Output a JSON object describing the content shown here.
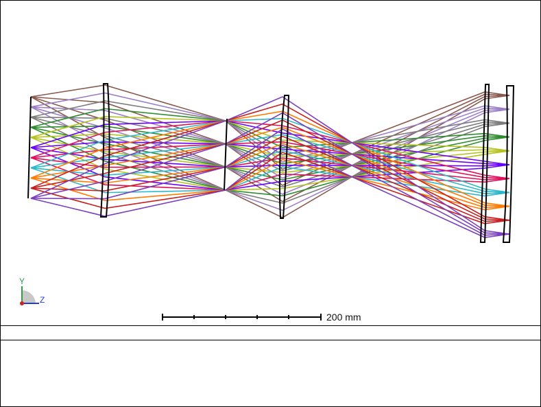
{
  "view": {
    "scale_bar_label": "200 mm",
    "axis_y_label": "Y",
    "axis_z_label": "Z",
    "axis_y_color": "#2ea043",
    "axis_z_color": "#1f3fd1",
    "axis_origin_color": "#d02020"
  },
  "ray_colors": [
    "#8b5a4f",
    "#9b7fc7",
    "#7d7d7d",
    "#2e8b2e",
    "#b5c21e",
    "#6a00ff",
    "#e0105a",
    "#2bb8c8",
    "#ff7a00",
    "#c81e1e",
    "#7a3fbf"
  ],
  "status_bar": {
    "text": ""
  },
  "info_panel": {
    "text": ""
  }
}
